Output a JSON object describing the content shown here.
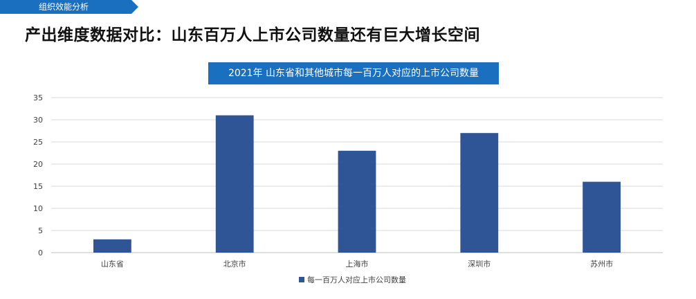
{
  "header": {
    "section_label": "组织效能分析",
    "title": "产出维度数据对比：山东百万人上市公司数量还有巨大增长空间"
  },
  "colors": {
    "tab": "#1a6fbe",
    "title_box": "#1a6fbe",
    "bar": "#2f5597",
    "grid": "#d9d9d9"
  },
  "chart_data": {
    "type": "bar",
    "title": "2021年 山东省和其他城市每一百万人对应的上市公司数量",
    "categories": [
      "山东省",
      "北京市",
      "上海市",
      "深圳市",
      "苏州市"
    ],
    "series": [
      {
        "name": "每一百万人对应上市公司数量",
        "values": [
          3,
          31,
          23,
          27,
          16
        ]
      }
    ],
    "ylim": [
      0,
      35
    ],
    "yticks": [
      0,
      5,
      10,
      15,
      20,
      25,
      30,
      35
    ],
    "grid": true,
    "legend": "bottom"
  }
}
